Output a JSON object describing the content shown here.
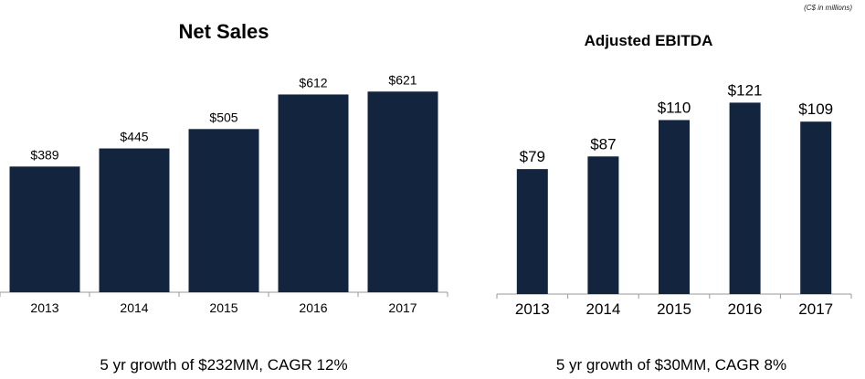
{
  "unit_note": "(C$ in millions)",
  "chart_data": [
    {
      "type": "bar",
      "title": "Net Sales",
      "categories": [
        "2013",
        "2014",
        "2015",
        "2016",
        "2017"
      ],
      "values": [
        389,
        445,
        505,
        612,
        621
      ],
      "value_labels": [
        "$389",
        "$445",
        "$505",
        "$612",
        "$621"
      ],
      "ylim": [
        0,
        650
      ],
      "bar_color": "#13243e",
      "grid": false,
      "caption": "5 yr growth of $232MM, CAGR 12%"
    },
    {
      "type": "bar",
      "title": "Adjusted EBITDA",
      "categories": [
        "2013",
        "2014",
        "2015",
        "2016",
        "2017"
      ],
      "values": [
        79,
        87,
        110,
        121,
        109
      ],
      "value_labels": [
        "$79",
        "$87",
        "$110",
        "$121",
        "$109"
      ],
      "ylim": [
        0,
        127
      ],
      "bar_color": "#13243e",
      "grid": false,
      "caption": "5 yr growth of $30MM, CAGR 8%"
    }
  ]
}
